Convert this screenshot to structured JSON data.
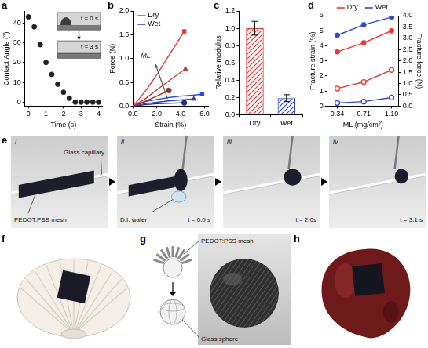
{
  "chart_data": [
    {
      "panel": "a",
      "type": "scatter",
      "x_label": "Time (s)",
      "y_label": "Contact Angle (°)",
      "x": [
        0,
        0.33,
        0.67,
        1.0,
        1.33,
        1.67,
        2.0,
        2.33,
        2.67,
        3.0,
        3.33,
        3.67,
        4.0
      ],
      "values": [
        43,
        38,
        29,
        20,
        14,
        9,
        5,
        2,
        0,
        0,
        0,
        0,
        0
      ],
      "color": "#222222",
      "marker": "circle",
      "grid": false,
      "xlim": [
        -0.2,
        4.2
      ],
      "xticks": [
        0,
        1,
        2,
        3,
        4
      ],
      "ylim": [
        -2,
        46
      ],
      "yticks": [
        0,
        10,
        20,
        30,
        40
      ],
      "annotations": [
        "t = 0 s",
        "t = 3 s"
      ]
    },
    {
      "panel": "b",
      "type": "line",
      "x_label": "Strain (%)",
      "y_label": "Force (N)",
      "legend": "top-left",
      "grid": false,
      "series": [
        {
          "name": "Dry",
          "color": "#e53935",
          "marker": "square",
          "x": [
            0,
            1,
            2,
            3,
            4.3
          ],
          "values": [
            0,
            0.3,
            0.66,
            1.06,
            1.57
          ]
        },
        {
          "name": "Dry",
          "color": "#c0392b",
          "marker": "triangle",
          "x": [
            0,
            1,
            2,
            3,
            4.4
          ],
          "values": [
            0,
            0.15,
            0.34,
            0.53,
            0.78
          ]
        },
        {
          "name": "Dry",
          "color": "#9e2a2a",
          "marker": "circle",
          "x": [
            0,
            1,
            2,
            3
          ],
          "values": [
            0,
            0.1,
            0.21,
            0.33
          ]
        },
        {
          "name": "Wet",
          "color": "#2f49d1",
          "marker": "square",
          "x": [
            0,
            1,
            2,
            3,
            4,
            5,
            5.8
          ],
          "values": [
            0,
            0.09,
            0.14,
            0.18,
            0.21,
            0.23,
            0.25
          ]
        },
        {
          "name": "Wet",
          "color": "#2a3fb0",
          "marker": "triangle",
          "x": [
            0,
            1,
            2,
            3,
            4,
            5.1
          ],
          "values": [
            0,
            0.05,
            0.08,
            0.11,
            0.13,
            0.15
          ]
        },
        {
          "name": "Wet",
          "color": "#1f2f8a",
          "marker": "circle",
          "x": [
            0,
            1,
            2,
            3,
            4.3
          ],
          "values": [
            0,
            0.03,
            0.05,
            0.06,
            0.07
          ]
        }
      ],
      "xlim": [
        0,
        6.3
      ],
      "xticks": [
        {
          "value": 0,
          "label": "0.0"
        },
        {
          "value": 2,
          "label": "2.0"
        },
        {
          "value": 4,
          "label": "4.0"
        },
        {
          "value": 6,
          "label": "6.0"
        }
      ],
      "ylim": [
        0,
        2
      ],
      "yticks": [
        {
          "value": 0,
          "label": "0.0"
        },
        0.5,
        {
          "value": 1,
          "label": "1.0"
        },
        1.5,
        {
          "value": 2,
          "label": "2.0"
        }
      ],
      "annotations": [
        "ML"
      ]
    },
    {
      "panel": "c",
      "type": "bar",
      "y_label": "Relative modulus",
      "grid": false,
      "categories": [
        "Dry",
        "Wet"
      ],
      "values": [
        1.0,
        0.19
      ],
      "errors": [
        0.08,
        0.04
      ],
      "colors": [
        "#e53935",
        "#2f49d1"
      ],
      "ylim": [
        0,
        1.2
      ],
      "yticks": [
        {
          "value": 0,
          "label": "0.0"
        },
        0.2,
        0.4,
        0.6,
        0.8,
        {
          "value": 1,
          "label": "1.0"
        },
        1.2
      ]
    },
    {
      "panel": "d",
      "type": "line",
      "x_label": "ML (mg/cm²)",
      "y_label": "Fracture strain (%)",
      "y2_label": "Fracture force (N)",
      "legend": "top",
      "grid": false,
      "x_values_note_free": true,
      "series": [
        {
          "name": "Dry",
          "color": "#e53935",
          "marker": "circle",
          "x": [
            0.34,
            0.71,
            1.1
          ],
          "values": [
            3.6,
            4.2,
            5.0
          ]
        },
        {
          "name": "Wet",
          "color": "#2f49d1",
          "marker": "circle",
          "x": [
            0.34,
            0.71,
            1.1
          ],
          "values": [
            4.7,
            5.4,
            5.9
          ]
        },
        {
          "name": "Dry",
          "color": "#e53935",
          "marker": "open_circle",
          "axis": "y2",
          "x": [
            0.34,
            0.71,
            1.1
          ],
          "values": [
            0.78,
            1.07,
            1.6
          ]
        },
        {
          "name": "Wet",
          "color": "#2f49d1",
          "marker": "open_circle",
          "axis": "y2",
          "x": [
            0.34,
            0.71,
            1.1
          ],
          "values": [
            0.14,
            0.2,
            0.38
          ]
        }
      ],
      "xlim": [
        0.2,
        1.2
      ],
      "xticks": [
        0.34,
        0.71,
        {
          "value": 1.1,
          "label": "1.10"
        }
      ],
      "ylim": [
        0,
        6
      ],
      "yticks": [
        0,
        1,
        2,
        3,
        4,
        5,
        6
      ],
      "y2lim": [
        0,
        4
      ],
      "y2ticks": [
        {
          "value": 0,
          "label": "0.0"
        },
        0.5,
        {
          "value": 1,
          "label": "1.0"
        },
        1.5,
        {
          "value": 2,
          "label": "2.0"
        },
        2.5,
        {
          "value": 3,
          "label": "3.0"
        },
        3.5,
        {
          "value": 4,
          "label": "4.0"
        }
      ]
    }
  ],
  "photos": {
    "e": {
      "panel": "e",
      "frames": [
        {
          "label": "i",
          "mesh_label": "PEDOT:PSS mesh",
          "capillary_label": "Glass capillary"
        },
        {
          "label": "ii",
          "water_label": "D.I. water",
          "time": "t = 0.0 s"
        },
        {
          "label": "iii",
          "time": "t = 2.0s"
        },
        {
          "label": "iv",
          "time": "t = 3.1 s"
        }
      ]
    },
    "f": {
      "panel": "f"
    },
    "g": {
      "panel": "g",
      "mesh_label": "PEDOT:PSS mesh",
      "sphere_label": "Glass sphere"
    },
    "h": {
      "panel": "h"
    }
  }
}
